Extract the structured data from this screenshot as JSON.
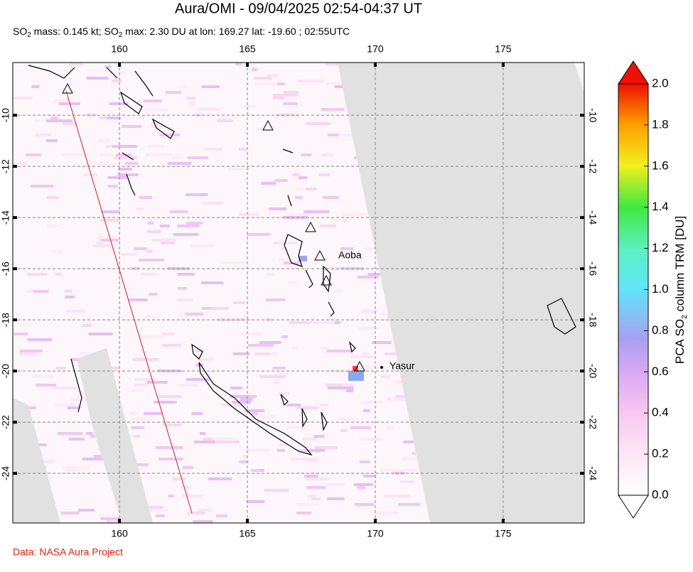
{
  "header": {
    "title": "Aura/OMI - 09/04/2025 02:54-04:37 UT",
    "subtitle_parts": [
      "SO",
      "2",
      " mass: 0.145 kt; SO",
      "2",
      " max: 2.30 DU at lon: 169.27 lat: -19.60 ; 02:55UTC"
    ]
  },
  "map": {
    "xlim": [
      155.83,
      178.17
    ],
    "ylim": [
      -25.94,
      -7.94
    ],
    "xticks": [
      160,
      165,
      170,
      175
    ],
    "yticks": [
      -10,
      -12,
      -14,
      -16,
      -18,
      -20,
      -22,
      -24
    ],
    "grid": true,
    "labels": [
      "Aoba",
      "Yasur"
    ]
  },
  "colorbar": {
    "lim": [
      0,
      2
    ],
    "ticks": [
      {
        "value": 0,
        "label": "0.0"
      },
      {
        "value": 0.2,
        "label": "0.2"
      },
      {
        "value": 0.4,
        "label": "0.4"
      },
      {
        "value": 0.6,
        "label": "0.6"
      },
      {
        "value": 0.8,
        "label": "0.8"
      },
      {
        "value": 1,
        "label": "1.0"
      },
      {
        "value": 1.2,
        "label": "1.2"
      },
      {
        "value": 1.4,
        "label": "1.4"
      },
      {
        "value": 1.6,
        "label": "1.6"
      },
      {
        "value": 1.8,
        "label": "1.8"
      },
      {
        "value": 2,
        "label": "2.0"
      }
    ],
    "label_parts": [
      "PCA SO",
      "2",
      " column TRM [DU]"
    ]
  },
  "footer": {
    "credit": "Data: NASA Aura Project"
  }
}
